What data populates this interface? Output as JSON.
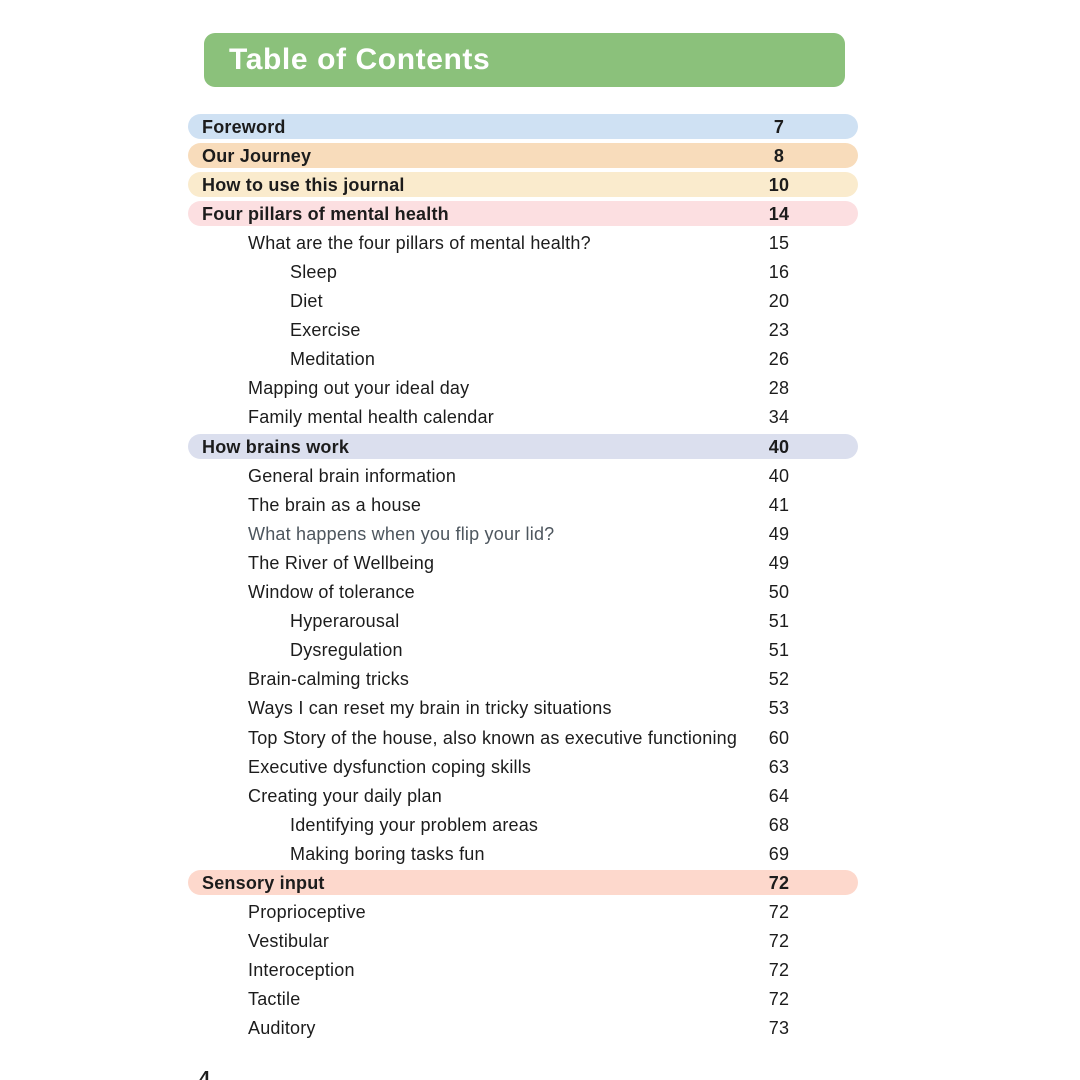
{
  "page": {
    "title": "Table of Contents",
    "page_number": "4"
  },
  "colors": {
    "header_bg": "#8bc17b",
    "header_text": "#ffffff",
    "text": "#1c1c1c",
    "muted_text": "#4d565e",
    "bar_blue": "#cfe1f3",
    "bar_orange": "#f8dcbb",
    "bar_cream": "#faebcd",
    "bar_pink": "#fcdfe1",
    "bar_lavender": "#dbdfee",
    "bar_salmon": "#fdd8cc"
  },
  "toc": {
    "entries": [
      {
        "label": "Foreword",
        "page": "7",
        "level": 0,
        "bar": "bar_blue",
        "bold": true
      },
      {
        "label": "Our Journey",
        "page": "8",
        "level": 0,
        "bar": "bar_orange",
        "bold": true
      },
      {
        "label": "How to use this journal",
        "page": "10",
        "level": 0,
        "bar": "bar_cream",
        "bold": true
      },
      {
        "label": "Four pillars of mental health",
        "page": "14",
        "level": 0,
        "bar": "bar_pink",
        "bold": true
      },
      {
        "label": "What are the four pillars of mental health?",
        "page": "15",
        "level": 1
      },
      {
        "label": "Sleep",
        "page": "16",
        "level": 2
      },
      {
        "label": "Diet",
        "page": "20",
        "level": 2
      },
      {
        "label": "Exercise",
        "page": "23",
        "level": 2
      },
      {
        "label": "Meditation",
        "page": "26",
        "level": 2
      },
      {
        "label": "Mapping out your ideal day",
        "page": "28",
        "level": 1
      },
      {
        "label": "Family mental health calendar",
        "page": "34",
        "level": 1
      },
      {
        "label": "How brains work",
        "page": "40",
        "level": 0,
        "bar": "bar_lavender",
        "bold": true
      },
      {
        "label": "General brain information",
        "page": "40",
        "level": 1
      },
      {
        "label": "The brain as a house",
        "page": "41",
        "level": 1
      },
      {
        "label": "What happens when you flip your lid?",
        "page": "49",
        "level": 1,
        "muted": true
      },
      {
        "label": "The River of Wellbeing",
        "page": "49",
        "level": 1
      },
      {
        "label": "Window of tolerance",
        "page": "50",
        "level": 1
      },
      {
        "label": "Hyperarousal",
        "page": "51",
        "level": 2
      },
      {
        "label": "Dysregulation",
        "page": "51",
        "level": 2
      },
      {
        "label": "Brain-calming tricks",
        "page": "52",
        "level": 1
      },
      {
        "label": "Ways I can reset my brain in tricky situations",
        "page": "53",
        "level": 1
      },
      {
        "label": "Top Story of the house, also known as executive functioning",
        "page": "60",
        "level": 1
      },
      {
        "label": "Executive dysfunction coping skills",
        "page": "63",
        "level": 1
      },
      {
        "label": "Creating your daily plan",
        "page": "64",
        "level": 1
      },
      {
        "label": "Identifying your problem areas",
        "page": "68",
        "level": 2
      },
      {
        "label": "Making boring tasks fun",
        "page": "69",
        "level": 2
      },
      {
        "label": "Sensory input",
        "page": "72",
        "level": 0,
        "bar": "bar_salmon",
        "bold": true
      },
      {
        "label": "Proprioceptive",
        "page": "72",
        "level": 1
      },
      {
        "label": "Vestibular",
        "page": "72",
        "level": 1
      },
      {
        "label": "Interoception",
        "page": "72",
        "level": 1
      },
      {
        "label": "Tactile",
        "page": "72",
        "level": 1
      },
      {
        "label": "Auditory",
        "page": "73",
        "level": 1
      }
    ]
  }
}
